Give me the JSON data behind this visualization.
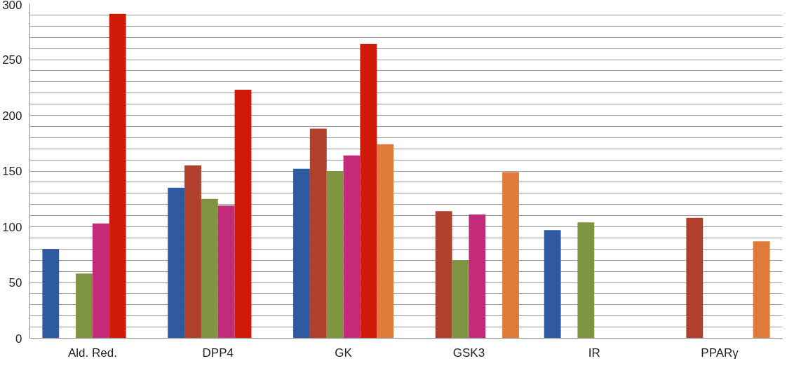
{
  "chart_data": {
    "type": "bar",
    "categories": [
      "Ald. Red.",
      "DPP4",
      "GK",
      "GSK3",
      "IR",
      "PPARγ"
    ],
    "series": [
      {
        "color": "#2e5aa0",
        "values": [
          80,
          135,
          152,
          null,
          97,
          null
        ]
      },
      {
        "color": "#b0402c",
        "values": [
          null,
          155,
          188,
          114,
          null,
          108
        ]
      },
      {
        "color": "#7f9440",
        "values": [
          58,
          125,
          150,
          70,
          104,
          null
        ]
      },
      {
        "color": "#c42a7a",
        "values": [
          103,
          119,
          164,
          111,
          null,
          null
        ]
      },
      {
        "color": "#d01a0a",
        "values": [
          291,
          223,
          264,
          null,
          null,
          null
        ]
      },
      {
        "color": "#e07a3a",
        "values": [
          null,
          null,
          174,
          149,
          null,
          87
        ]
      }
    ],
    "ylim": [
      0,
      300
    ],
    "yticks": [
      0,
      {
        "value": 10,
        "label": null
      },
      {
        "value": 20,
        "label": null
      },
      {
        "value": 30,
        "label": null
      },
      {
        "value": 40,
        "label": null
      },
      50,
      {
        "value": 60,
        "label": null
      },
      {
        "value": 70,
        "label": null
      },
      {
        "value": 80,
        "label": null
      },
      {
        "value": 90,
        "label": null
      },
      100,
      {
        "value": 110,
        "label": null
      },
      {
        "value": 120,
        "label": null
      },
      {
        "value": 130,
        "label": null
      },
      {
        "value": 140,
        "label": null
      },
      150,
      {
        "value": 160,
        "label": null
      },
      {
        "value": 170,
        "label": null
      },
      {
        "value": 180,
        "label": null
      },
      {
        "value": 190,
        "label": null
      },
      200,
      {
        "value": 210,
        "label": null
      },
      {
        "value": 220,
        "label": null
      },
      {
        "value": 230,
        "label": null
      },
      {
        "value": 240,
        "label": null
      },
      250,
      {
        "value": 260,
        "label": null
      },
      {
        "value": 270,
        "label": null
      },
      {
        "value": 280,
        "label": null
      },
      {
        "value": 290,
        "label": null
      },
      300
    ],
    "grid": "y"
  }
}
